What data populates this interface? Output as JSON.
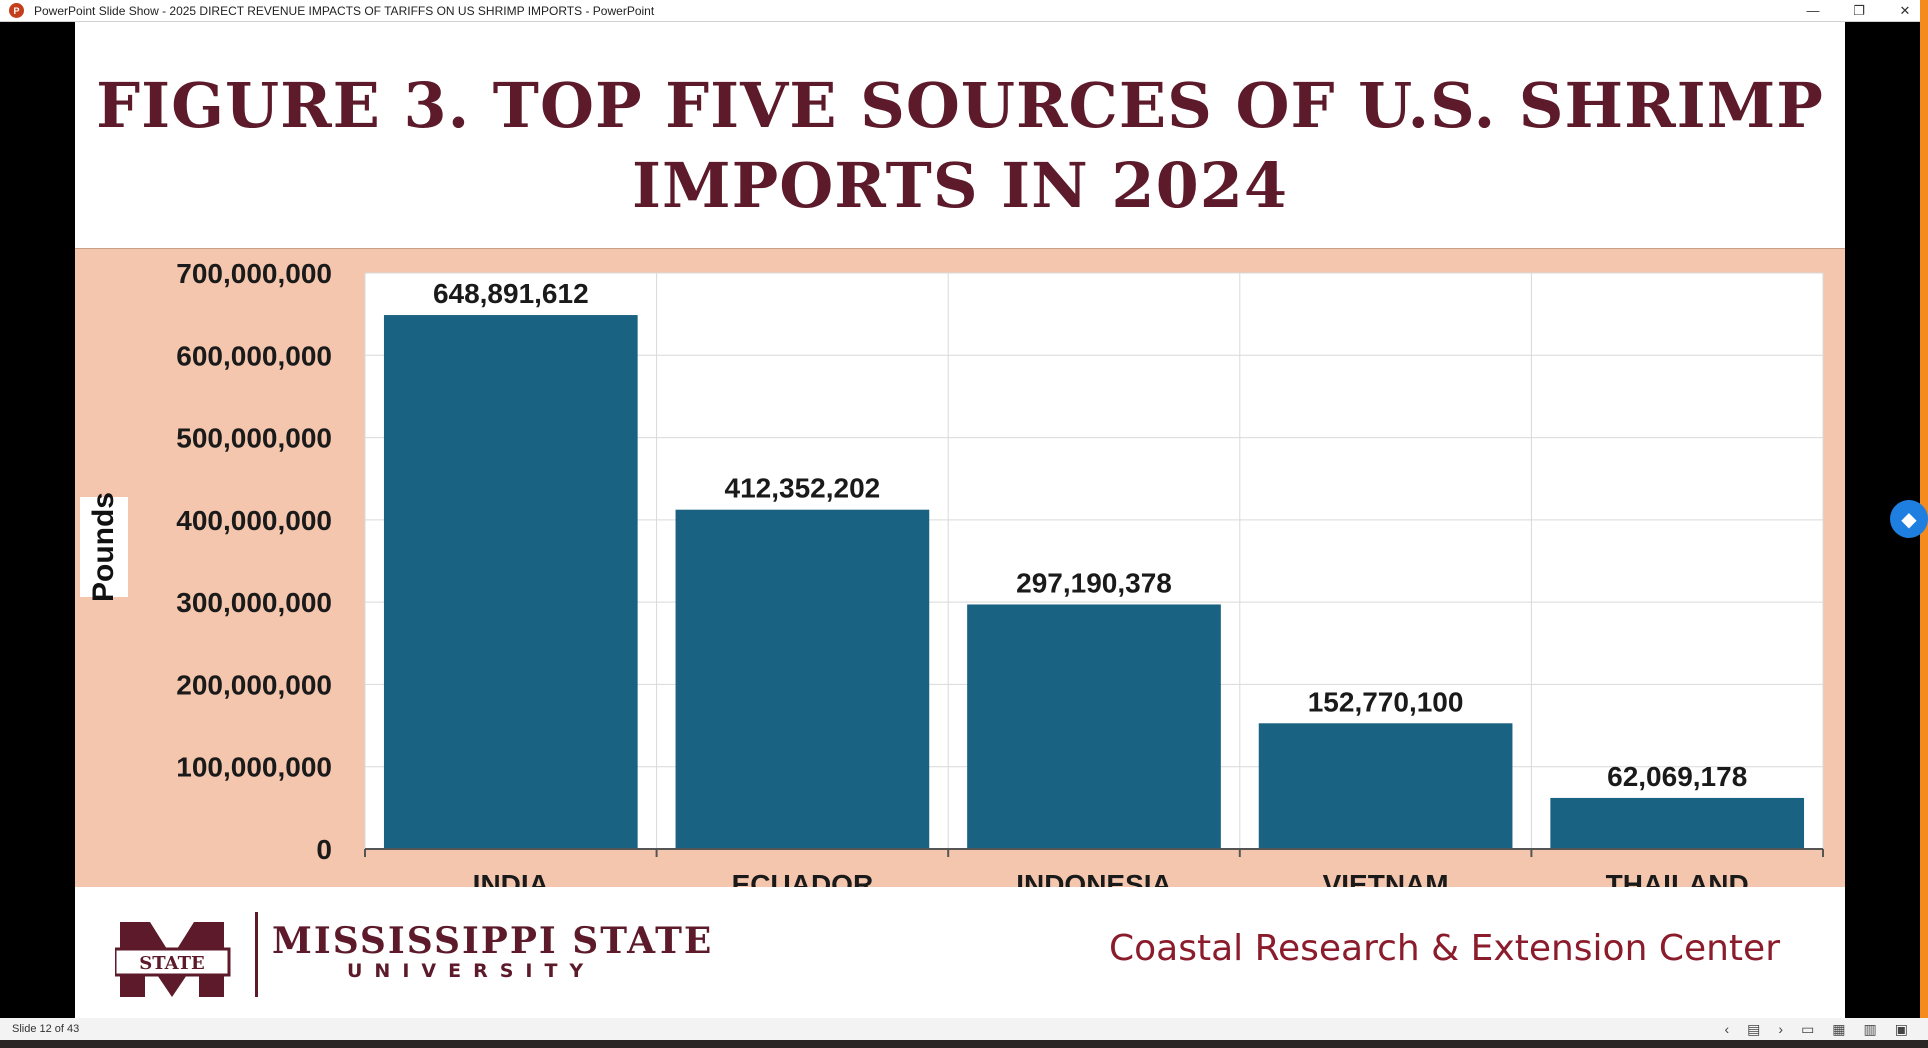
{
  "window": {
    "title": "PowerPoint Slide Show  -  2025 DIRECT REVENUE IMPACTS OF TARIFFS ON US SHRIMP IMPORTS - PowerPoint",
    "app_icon": "P",
    "minimize_icon": "—",
    "restore_icon": "❐",
    "close_icon": "✕"
  },
  "slide": {
    "title_line1": "FIGURE 3. TOP FIVE SOURCES OF U.S. SHRIMP",
    "title_line2": "IMPORTS IN 2024",
    "y_axis_label": "Pounds",
    "footer": {
      "university_name": "MISSISSIPPI STATE",
      "university_sub": "UNIVERSITY",
      "logo_text": "STATE",
      "center_name": "Coastal Research & Extension Center"
    }
  },
  "colors": {
    "title": "#5c1a2a",
    "bar": "#1a6282",
    "panel_bg": "#f4c6ae",
    "center_name": "#8b1c2c"
  },
  "chart_data": {
    "type": "bar",
    "title": "FIGURE 3. TOP FIVE SOURCES OF U.S. SHRIMP IMPORTS IN 2024",
    "xlabel": "",
    "ylabel": "Pounds",
    "categories": [
      "INDIA",
      "ECUADOR",
      "INDONESIA",
      "VIETNAM",
      "THAILAND"
    ],
    "values": [
      648891612,
      412352202,
      297190378,
      152770100,
      62069178
    ],
    "value_labels": [
      "648,891,612",
      "412,352,202",
      "297,190,378",
      "152,770,100",
      "62,069,178"
    ],
    "ylim": [
      0,
      700000000
    ],
    "yticks": [
      0,
      100000000,
      200000000,
      300000000,
      400000000,
      500000000,
      600000000,
      700000000
    ],
    "ytick_labels": [
      "0",
      "100,000,000",
      "200,000,000",
      "300,000,000",
      "400,000,000",
      "500,000,000",
      "600,000,000",
      "700,000,000"
    ],
    "grid": true
  },
  "statusbar": {
    "slide_counter": "Slide 12 of 43"
  }
}
